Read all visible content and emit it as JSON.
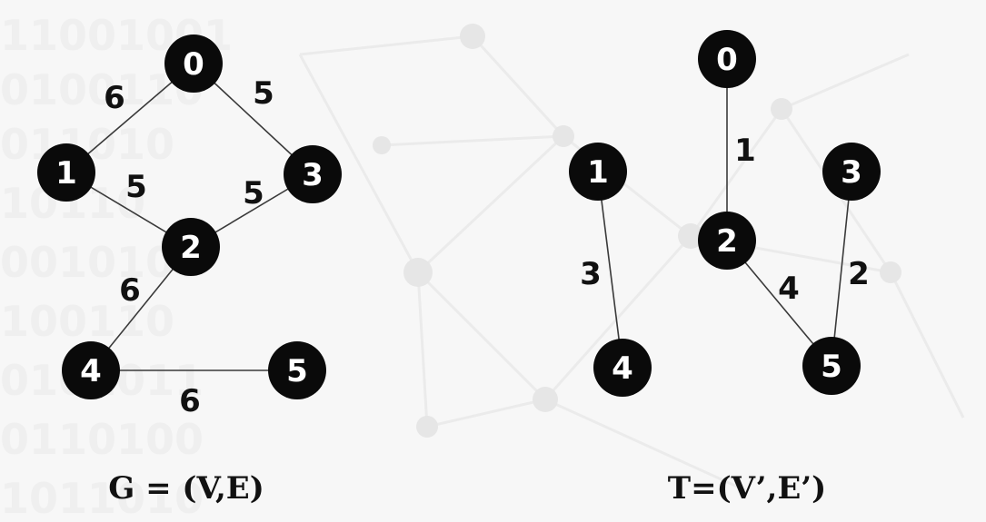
{
  "graphs": [
    {
      "caption": "G = (V,E)",
      "nodes": [
        {
          "id": "0",
          "label": "0"
        },
        {
          "id": "1",
          "label": "1"
        },
        {
          "id": "2",
          "label": "2"
        },
        {
          "id": "3",
          "label": "3"
        },
        {
          "id": "4",
          "label": "4"
        },
        {
          "id": "5",
          "label": "5"
        }
      ],
      "edges": [
        {
          "from": "0",
          "to": "1",
          "weight": "6"
        },
        {
          "from": "0",
          "to": "3",
          "weight": "5"
        },
        {
          "from": "1",
          "to": "2",
          "weight": "5"
        },
        {
          "from": "3",
          "to": "2",
          "weight": "5"
        },
        {
          "from": "2",
          "to": "4",
          "weight": "6"
        },
        {
          "from": "4",
          "to": "5",
          "weight": "6"
        }
      ]
    },
    {
      "caption": "T=(V’,E’)",
      "nodes": [
        {
          "id": "0",
          "label": "0"
        },
        {
          "id": "1",
          "label": "1"
        },
        {
          "id": "2",
          "label": "2"
        },
        {
          "id": "3",
          "label": "3"
        },
        {
          "id": "4",
          "label": "4"
        },
        {
          "id": "5",
          "label": "5"
        }
      ],
      "edges": [
        {
          "from": "0",
          "to": "2",
          "weight": "1"
        },
        {
          "from": "1",
          "to": "4",
          "weight": "3"
        },
        {
          "from": "2",
          "to": "5",
          "weight": "4"
        },
        {
          "from": "3",
          "to": "5",
          "weight": "2"
        }
      ]
    }
  ],
  "colors": {
    "node_fill": "#0a0a0a",
    "node_text": "#ffffff",
    "edge": "#3a3a3a",
    "text": "#111111"
  }
}
